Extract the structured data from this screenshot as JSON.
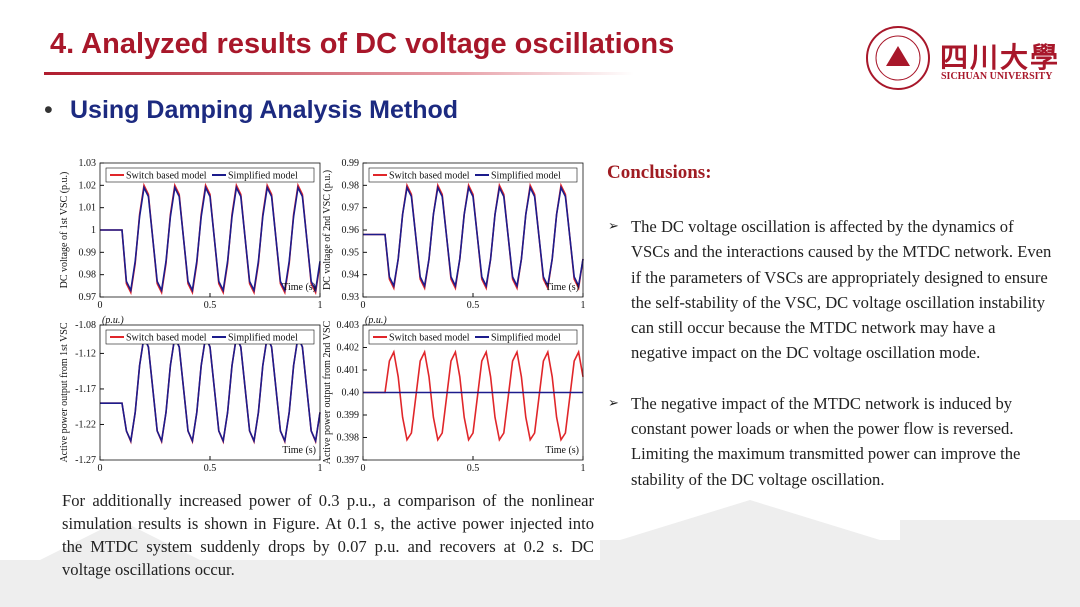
{
  "header": {
    "title": "4. Analyzed results of DC voltage oscillations",
    "subtitle": "Using Damping Analysis Method",
    "logo_cn": "四川大學",
    "logo_en": "SICHUAN UNIVERSITY"
  },
  "charts": [
    {
      "type": "line",
      "ylabel": "DC voltage of 1st VSC (p.u.)",
      "xlabel": "Time (s)",
      "xlim": [
        0,
        1
      ],
      "xticks": [
        0,
        0.5,
        1
      ],
      "ylim": [
        0.97,
        1.03
      ],
      "yticks": [
        0.97,
        0.98,
        0.99,
        1,
        1.01,
        1.02,
        1.03
      ],
      "x": [
        0,
        0.02,
        0.04,
        0.06,
        0.08,
        0.1,
        0.12,
        0.14,
        0.16,
        0.18,
        0.2,
        0.22,
        0.24,
        0.26,
        0.28,
        0.3,
        0.32,
        0.34,
        0.36,
        0.38,
        0.4,
        0.42,
        0.44,
        0.46,
        0.48,
        0.5,
        0.52,
        0.54,
        0.56,
        0.58,
        0.6,
        0.62,
        0.64,
        0.66,
        0.68,
        0.7,
        0.72,
        0.74,
        0.76,
        0.78,
        0.8,
        0.82,
        0.84,
        0.86,
        0.88,
        0.9,
        0.92,
        0.94,
        0.96,
        0.98,
        1
      ],
      "series": [
        {
          "name": "Switch based model",
          "color": "#e0262a",
          "values": [
            1,
            1,
            1,
            1,
            1,
            1,
            0.976,
            0.972,
            0.985,
            1.007,
            1.02,
            1.016,
            0.996,
            0.976,
            0.972,
            0.985,
            1.007,
            1.02,
            1.016,
            0.996,
            0.976,
            0.972,
            0.985,
            1.007,
            1.02,
            1.016,
            0.996,
            0.976,
            0.972,
            0.985,
            1.007,
            1.02,
            1.016,
            0.996,
            0.976,
            0.972,
            0.985,
            1.007,
            1.02,
            1.016,
            0.996,
            0.976,
            0.972,
            0.985,
            1.007,
            1.02,
            1.016,
            0.996,
            0.976,
            0.972,
            0.985
          ]
        },
        {
          "name": "Simplified model",
          "color": "#1c1c8c",
          "values": [
            1,
            1,
            1,
            1,
            1,
            1,
            0.977,
            0.973,
            0.986,
            1.006,
            1.019,
            1.015,
            0.996,
            0.977,
            0.973,
            0.986,
            1.006,
            1.019,
            1.015,
            0.996,
            0.977,
            0.973,
            0.986,
            1.006,
            1.019,
            1.015,
            0.996,
            0.977,
            0.973,
            0.986,
            1.006,
            1.019,
            1.015,
            0.996,
            0.977,
            0.973,
            0.986,
            1.006,
            1.019,
            1.015,
            0.996,
            0.977,
            0.973,
            0.986,
            1.006,
            1.019,
            1.015,
            0.996,
            0.977,
            0.973,
            0.986
          ]
        }
      ]
    },
    {
      "type": "line",
      "ylabel": "DC voltage of 2nd VSC (p.u.)",
      "xlabel": "Time (s)",
      "xlim": [
        0,
        1
      ],
      "xticks": [
        0,
        0.5,
        1
      ],
      "ylim": [
        0.93,
        0.99
      ],
      "yticks": [
        0.93,
        0.94,
        0.95,
        0.96,
        0.97,
        0.98,
        0.99
      ],
      "x": [
        0,
        0.02,
        0.04,
        0.06,
        0.08,
        0.1,
        0.12,
        0.14,
        0.16,
        0.18,
        0.2,
        0.22,
        0.24,
        0.26,
        0.28,
        0.3,
        0.32,
        0.34,
        0.36,
        0.38,
        0.4,
        0.42,
        0.44,
        0.46,
        0.48,
        0.5,
        0.52,
        0.54,
        0.56,
        0.58,
        0.6,
        0.62,
        0.64,
        0.66,
        0.68,
        0.7,
        0.72,
        0.74,
        0.76,
        0.78,
        0.8,
        0.82,
        0.84,
        0.86,
        0.88,
        0.9,
        0.92,
        0.94,
        0.96,
        0.98,
        1
      ],
      "series": [
        {
          "name": "Switch based model",
          "color": "#e0262a",
          "values": [
            0.958,
            0.958,
            0.958,
            0.958,
            0.958,
            0.958,
            0.938,
            0.934,
            0.947,
            0.967,
            0.98,
            0.976,
            0.957,
            0.938,
            0.934,
            0.947,
            0.967,
            0.98,
            0.976,
            0.957,
            0.938,
            0.934,
            0.947,
            0.967,
            0.98,
            0.976,
            0.957,
            0.938,
            0.934,
            0.947,
            0.967,
            0.98,
            0.976,
            0.957,
            0.938,
            0.934,
            0.947,
            0.967,
            0.98,
            0.976,
            0.957,
            0.938,
            0.934,
            0.947,
            0.967,
            0.98,
            0.976,
            0.957,
            0.938,
            0.934,
            0.947
          ]
        },
        {
          "name": "Simplified model",
          "color": "#1c1c8c",
          "values": [
            0.958,
            0.958,
            0.958,
            0.958,
            0.958,
            0.958,
            0.939,
            0.935,
            0.947,
            0.967,
            0.979,
            0.975,
            0.957,
            0.939,
            0.935,
            0.947,
            0.967,
            0.979,
            0.975,
            0.957,
            0.939,
            0.935,
            0.947,
            0.967,
            0.979,
            0.975,
            0.957,
            0.939,
            0.935,
            0.947,
            0.967,
            0.979,
            0.975,
            0.957,
            0.939,
            0.935,
            0.947,
            0.967,
            0.979,
            0.975,
            0.957,
            0.939,
            0.935,
            0.947,
            0.967,
            0.979,
            0.975,
            0.957,
            0.939,
            0.935,
            0.947
          ]
        }
      ]
    },
    {
      "type": "line",
      "ylabel": "Active power output from 1st VSC",
      "annotation": "(p.u.)",
      "xlabel": "Time (s)",
      "xlim": [
        0,
        1
      ],
      "xticks": [
        0,
        0.5,
        1
      ],
      "ylim": [
        -1.27,
        -1.08
      ],
      "yticks": [
        -1.27,
        -1.22,
        -1.17,
        -1.12,
        -1.08
      ],
      "x": [
        0,
        0.02,
        0.04,
        0.06,
        0.08,
        0.1,
        0.12,
        0.14,
        0.16,
        0.18,
        0.2,
        0.22,
        0.24,
        0.26,
        0.28,
        0.3,
        0.32,
        0.34,
        0.36,
        0.38,
        0.4,
        0.42,
        0.44,
        0.46,
        0.48,
        0.5,
        0.52,
        0.54,
        0.56,
        0.58,
        0.6,
        0.62,
        0.64,
        0.66,
        0.68,
        0.7,
        0.72,
        0.74,
        0.76,
        0.78,
        0.8,
        0.82,
        0.84,
        0.86,
        0.88,
        0.9,
        0.92,
        0.94,
        0.96,
        0.98,
        1
      ],
      "series": [
        {
          "name": "Switch based model",
          "color": "#e0262a",
          "values": [
            -1.19,
            -1.19,
            -1.19,
            -1.19,
            -1.19,
            -1.19,
            -1.229,
            -1.244,
            -1.203,
            -1.137,
            -1.096,
            -1.111,
            -1.17,
            -1.229,
            -1.244,
            -1.203,
            -1.137,
            -1.096,
            -1.111,
            -1.17,
            -1.229,
            -1.244,
            -1.203,
            -1.137,
            -1.096,
            -1.111,
            -1.17,
            -1.229,
            -1.244,
            -1.203,
            -1.137,
            -1.096,
            -1.111,
            -1.17,
            -1.229,
            -1.244,
            -1.203,
            -1.137,
            -1.096,
            -1.111,
            -1.17,
            -1.229,
            -1.244,
            -1.203,
            -1.137,
            -1.096,
            -1.111,
            -1.17,
            -1.229,
            -1.244,
            -1.203
          ]
        },
        {
          "name": "Simplified model",
          "color": "#1c1c8c",
          "values": [
            -1.19,
            -1.19,
            -1.19,
            -1.19,
            -1.19,
            -1.19,
            -1.229,
            -1.243,
            -1.203,
            -1.137,
            -1.097,
            -1.111,
            -1.17,
            -1.229,
            -1.243,
            -1.203,
            -1.137,
            -1.097,
            -1.111,
            -1.17,
            -1.229,
            -1.243,
            -1.203,
            -1.137,
            -1.097,
            -1.111,
            -1.17,
            -1.229,
            -1.243,
            -1.203,
            -1.137,
            -1.097,
            -1.111,
            -1.17,
            -1.229,
            -1.243,
            -1.203,
            -1.137,
            -1.097,
            -1.111,
            -1.17,
            -1.229,
            -1.243,
            -1.203,
            -1.137,
            -1.097,
            -1.111,
            -1.17,
            -1.229,
            -1.243,
            -1.203
          ]
        }
      ]
    },
    {
      "type": "line",
      "ylabel": "Active power output from 2nd VSC",
      "annotation": "(p.u.)",
      "xlabel": "Time (s)",
      "xlim": [
        0,
        1
      ],
      "xticks": [
        0,
        0.5,
        1
      ],
      "ylim": [
        0.397,
        0.403
      ],
      "yticks": [
        0.397,
        0.398,
        0.399,
        {
          "value": 0.4,
          "label": "0.40"
        },
        0.401,
        0.402,
        0.403
      ],
      "x": [
        0,
        0.02,
        0.04,
        0.06,
        0.08,
        0.1,
        0.12,
        0.14,
        0.16,
        0.18,
        0.2,
        0.22,
        0.24,
        0.26,
        0.28,
        0.3,
        0.32,
        0.34,
        0.36,
        0.38,
        0.4,
        0.42,
        0.44,
        0.46,
        0.48,
        0.5,
        0.52,
        0.54,
        0.56,
        0.58,
        0.6,
        0.62,
        0.64,
        0.66,
        0.68,
        0.7,
        0.72,
        0.74,
        0.76,
        0.78,
        0.8,
        0.82,
        0.84,
        0.86,
        0.88,
        0.9,
        0.92,
        0.94,
        0.96,
        0.98,
        1
      ],
      "series": [
        {
          "name": "Switch based model",
          "color": "#e0262a",
          "values": [
            0.4,
            0.4,
            0.4,
            0.4,
            0.4,
            0.4,
            0.4014,
            0.4018,
            0.4007,
            0.3989,
            0.3979,
            0.3982,
            0.3998,
            0.4014,
            0.4018,
            0.4007,
            0.3989,
            0.3979,
            0.3982,
            0.3998,
            0.4014,
            0.4018,
            0.4007,
            0.3989,
            0.3979,
            0.3982,
            0.3998,
            0.4014,
            0.4018,
            0.4007,
            0.3989,
            0.3979,
            0.3982,
            0.3998,
            0.4014,
            0.4018,
            0.4007,
            0.3989,
            0.3979,
            0.3982,
            0.3998,
            0.4014,
            0.4018,
            0.4007,
            0.3989,
            0.3979,
            0.3982,
            0.3998,
            0.4014,
            0.4018,
            0.4007
          ]
        },
        {
          "name": "Simplified model",
          "color": "#1c1c8c",
          "values": [
            0.4,
            0.4,
            0.4,
            0.4,
            0.4,
            0.4,
            0.4,
            0.4,
            0.4,
            0.4,
            0.4,
            0.4,
            0.4,
            0.4,
            0.4,
            0.4,
            0.4,
            0.4,
            0.4,
            0.4,
            0.4,
            0.4,
            0.4,
            0.4,
            0.4,
            0.4,
            0.4,
            0.4,
            0.4,
            0.4,
            0.4,
            0.4,
            0.4,
            0.4,
            0.4,
            0.4,
            0.4,
            0.4,
            0.4,
            0.4,
            0.4,
            0.4,
            0.4,
            0.4,
            0.4,
            0.4,
            0.4,
            0.4,
            0.4,
            0.4,
            0.4
          ]
        }
      ]
    }
  ],
  "description": "For additionally increased power of 0.3 p.u., a comparison of the nonlinear simulation results is shown in Figure. At 0.1 s, the active power injected into the MTDC system suddenly drops by 0.07 p.u. and recovers at 0.2 s. DC voltage oscillations occur.",
  "conclusions": {
    "heading": "Conclusions:",
    "items": [
      "The DC voltage oscillation is affected by the dynamics of VSCs and the interactions caused by the MTDC network. Even if the parameters of VSCs are appropriately designed to ensure the self-stability of the VSC, DC voltage oscillation instability can still occur because the MTDC network may have a negative impact on the DC voltage oscillation mode.",
      "The negative impact of the MTDC network is induced by constant power loads or when the power flow is reversed. Limiting the maximum transmitted power can improve the stability of the DC voltage oscillation."
    ]
  }
}
